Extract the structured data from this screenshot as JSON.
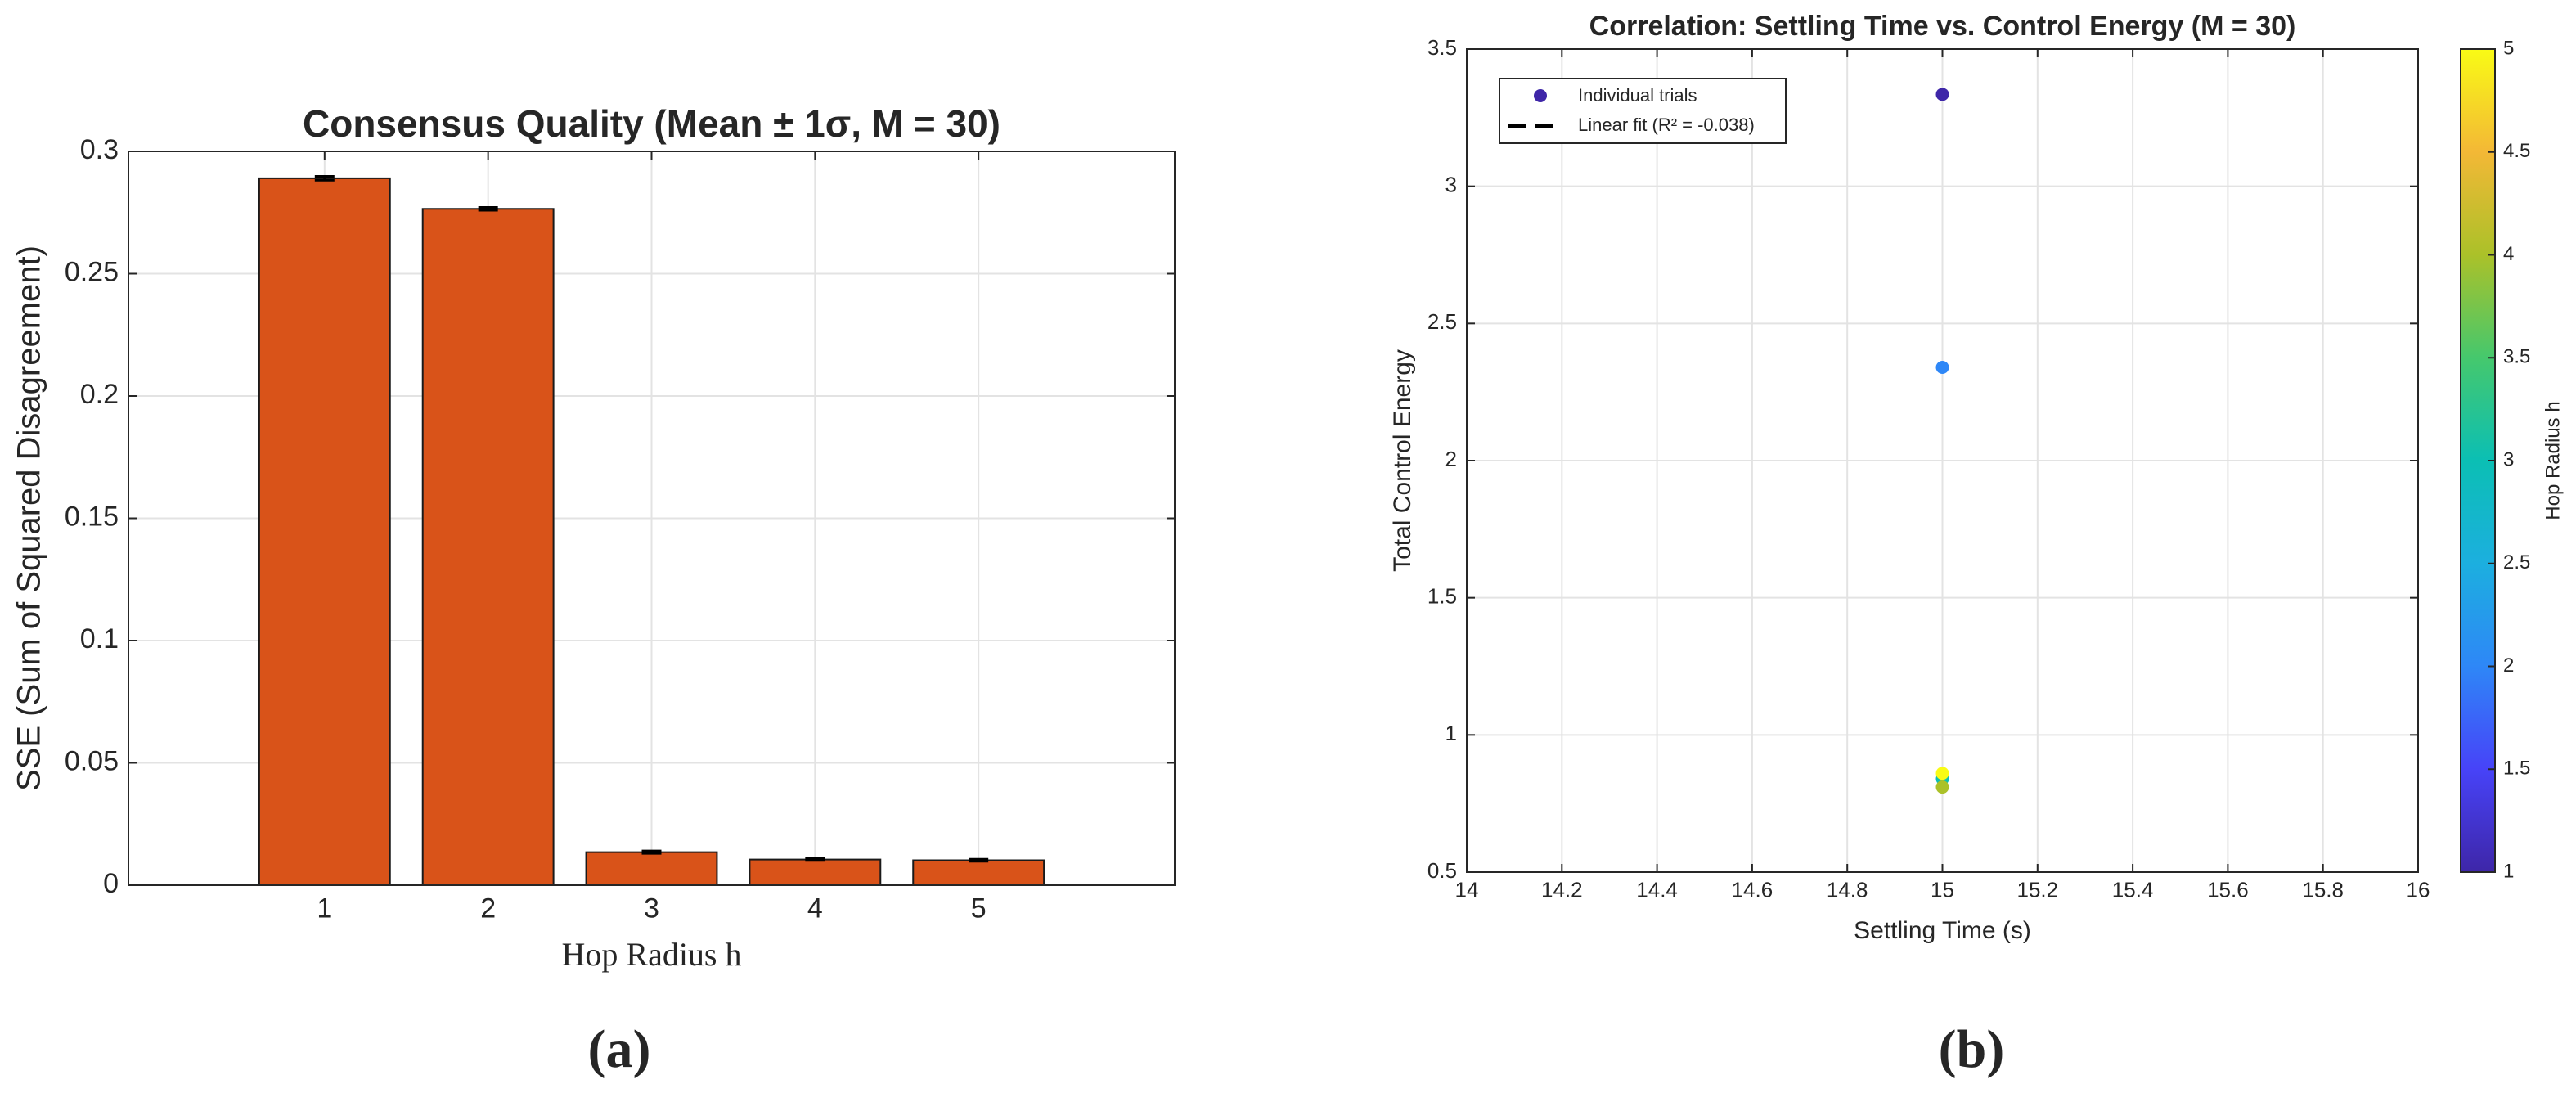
{
  "chart_data": [
    {
      "type": "bar",
      "title": "Consensus Quality (Mean ± 1σ, M = 30)",
      "x_label": "Hop Radius h",
      "y_label": "SSE (Sum of Squared Disagreement)",
      "panel_label": "(a)",
      "x": [
        1,
        2,
        3,
        4,
        5
      ],
      "values": [
        0.289,
        0.2765,
        0.0135,
        0.0105,
        0.0102
      ],
      "errors": [
        0.0008,
        0.0006,
        0.0005,
        0.0004,
        0.0004
      ],
      "color": "#d95319",
      "xlim": [
        -0.2,
        6.2
      ],
      "xticks": [
        1,
        2,
        3,
        4,
        5
      ],
      "ylim": [
        0,
        0.3
      ],
      "yticks": [
        0,
        0.05,
        0.1,
        0.15,
        0.2,
        0.25,
        0.3
      ],
      "grid": true
    },
    {
      "type": "scatter",
      "title": "Correlation: Settling Time vs. Control Energy (M = 30)",
      "x_label": "Settling Time (s)",
      "y_label": "Total Control Energy",
      "panel_label": "(b)",
      "series": [
        {
          "name": "Individual trials",
          "x": [
            15,
            15,
            15,
            15,
            15
          ],
          "values": [
            3.335,
            2.34,
            0.84,
            0.81,
            0.86
          ],
          "c": [
            1,
            2,
            3,
            4,
            5
          ]
        },
        {
          "name": "Linear fit (R² = -0.038)",
          "color": "#000000"
        }
      ],
      "legend": "upper-left",
      "xlim": [
        14,
        16
      ],
      "xticks": [
        14,
        14.2,
        14.4,
        14.6,
        14.8,
        15,
        15.2,
        15.4,
        15.6,
        15.8,
        16
      ],
      "ylim": [
        0.5,
        3.5
      ],
      "yticks": [
        0.5,
        1,
        1.5,
        2,
        2.5,
        3,
        3.5
      ],
      "grid": true,
      "colorbar": {
        "label": "Hop Radius h",
        "clim": [
          1,
          5
        ],
        "ticks": [
          1,
          1.5,
          2,
          2.5,
          3,
          3.5,
          4,
          4.5,
          5
        ],
        "colormap": [
          "#3e26a8",
          "#4743f8",
          "#2e87f7",
          "#1cafdf",
          "#0bbfb4",
          "#45c86d",
          "#abc129",
          "#f3b836",
          "#f9fb15"
        ]
      }
    }
  ]
}
